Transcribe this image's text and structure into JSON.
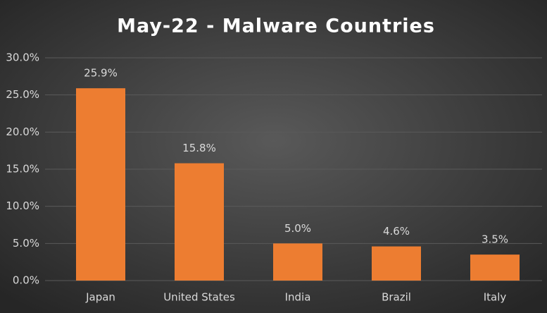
{
  "chart_data": {
    "type": "bar",
    "title": "May-22 - Malware Countries",
    "categories": [
      "Japan",
      "United States",
      "India",
      "Brazil",
      "Italy"
    ],
    "values": [
      25.9,
      15.8,
      5.0,
      4.6,
      3.5
    ],
    "value_labels": [
      "25.9%",
      "15.8%",
      "5.0%",
      "4.6%",
      "3.5%"
    ],
    "color": "#ed7d31",
    "ylim": [
      0,
      30
    ],
    "yticks": [
      {
        "value": 0,
        "label": "0.0%"
      },
      {
        "value": 5,
        "label": "5.0%"
      },
      {
        "value": 10,
        "label": "10.0%"
      },
      {
        "value": 15,
        "label": "15.0%"
      },
      {
        "value": 20,
        "label": "20.0%"
      },
      {
        "value": 25,
        "label": "25.0%"
      },
      {
        "value": 30,
        "label": "30.0%"
      }
    ],
    "grid": true
  }
}
